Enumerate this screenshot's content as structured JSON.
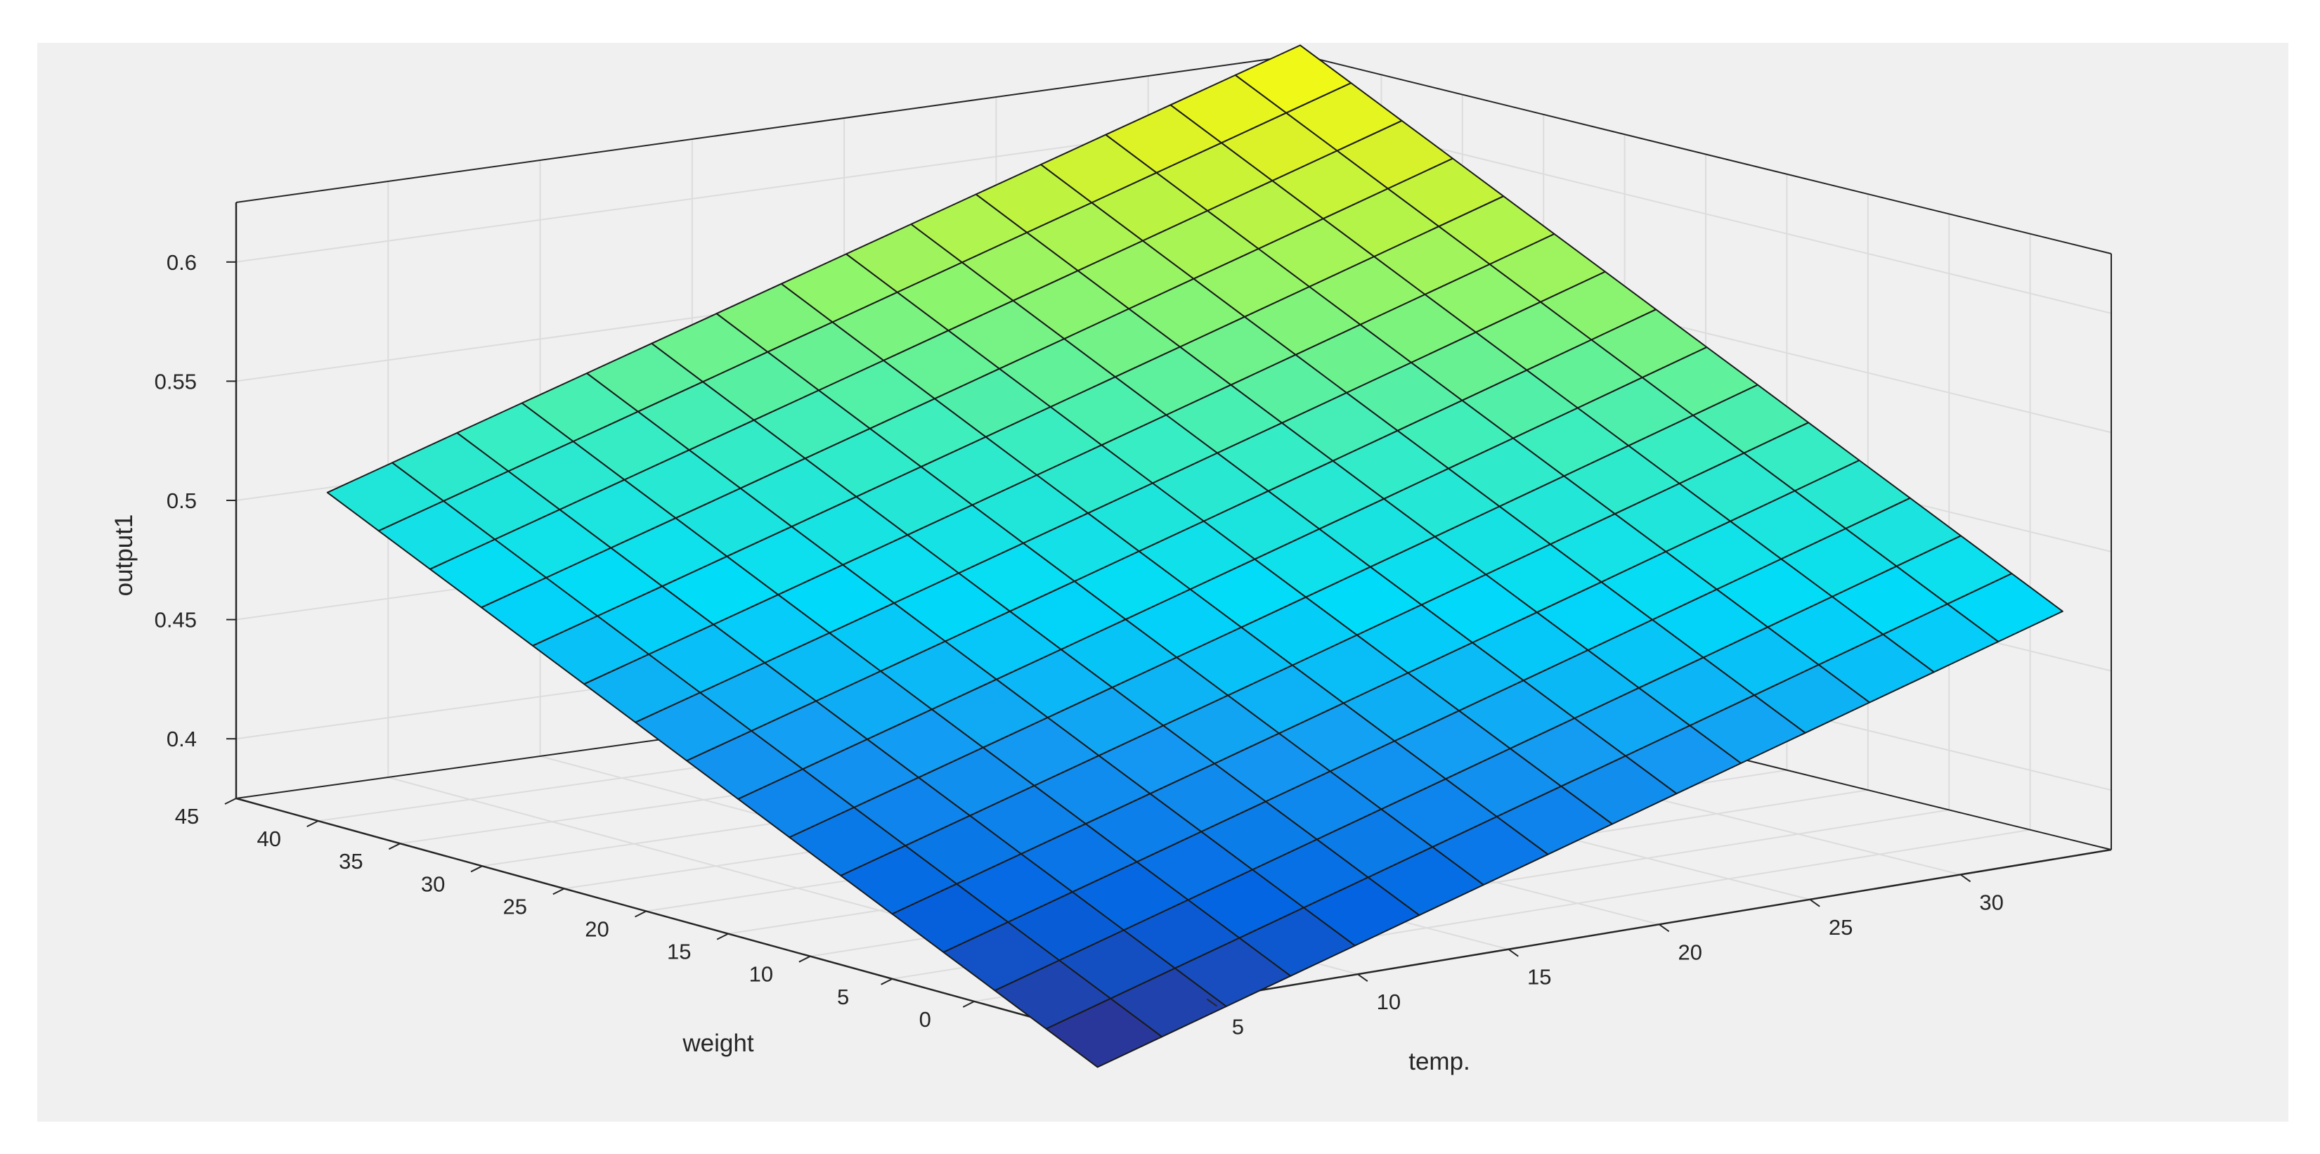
{
  "chart_data": {
    "type": "surface",
    "title": "",
    "xlabel": "temp.",
    "ylabel": "weight",
    "zlabel": "output1",
    "xlim": [
      0,
      35
    ],
    "ylim": [
      -5,
      45
    ],
    "zlim": [
      0.375,
      0.625
    ],
    "grid": true,
    "colormap": "parula",
    "x_ticks": [
      "5",
      "10",
      "15",
      "20",
      "25",
      "30"
    ],
    "y_ticks": [
      "0",
      "5",
      "10",
      "15",
      "20",
      "25",
      "30",
      "35",
      "40",
      "45"
    ],
    "z_ticks": [
      "0.4",
      "0.45",
      "0.5",
      "0.55",
      "0.6"
    ],
    "x_range": [
      3,
      35
    ],
    "y_range": [
      -2,
      45
    ],
    "grid_size": 15,
    "corner_values": {
      "x_min_y_min": 0.345,
      "x_max_y_min": 0.47,
      "x_min_y_max": 0.498,
      "x_max_y_max": 0.629
    },
    "midpoint_value": 0.485
  }
}
